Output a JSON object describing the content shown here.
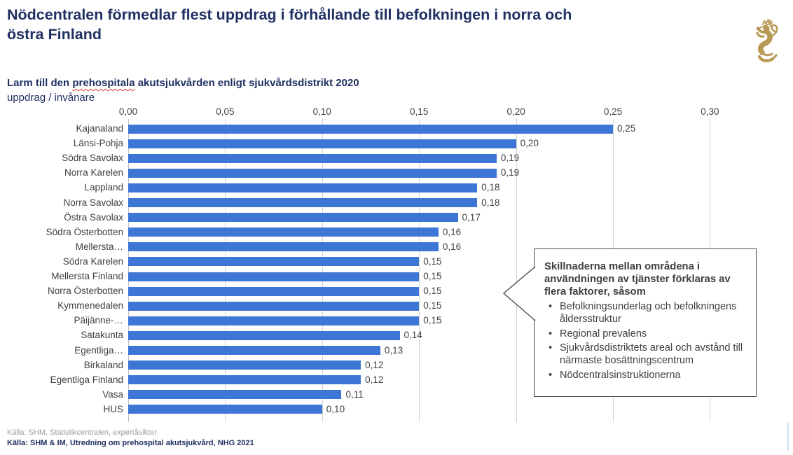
{
  "page": {
    "title_lines": [
      "Nödcentralen förmedlar flest uppdrag i förhållande till befolkningen i norra och",
      "östra Finland"
    ]
  },
  "logo": {
    "name": "finnish-lion-coat-of-arms",
    "color": "#b99a55"
  },
  "subtitle": {
    "prefix": "Larm till den ",
    "spellcheck_word": "prehospitala",
    "suffix": " akutsjukvården enligt sjukvårdsdistrikt 2020"
  },
  "unit_label": "uppdrag / invånare",
  "chart_data": {
    "type": "bar",
    "orientation": "horizontal",
    "title": "Larm till den prehospitala akutsjukvården enligt sjukvårdsdistrikt 2020",
    "xlabel": "uppdrag / invånare",
    "xlim": [
      0,
      0.3
    ],
    "x_tick_labels": [
      "0,00",
      "0,05",
      "0,10",
      "0,15",
      "0,20",
      "0,25",
      "0,30"
    ],
    "x_tick_values": [
      0.0,
      0.05,
      0.1,
      0.15,
      0.2,
      0.25,
      0.3
    ],
    "grid": true,
    "bar_color": "#3e76d6",
    "categories": [
      "Kajanaland",
      "Länsi-Pohja",
      "Södra Savolax",
      "Norra Karelen",
      "Lappland",
      "Norra Savolax",
      "Östra Savolax",
      "Södra Österbotten",
      "Mellersta…",
      "Södra Karelen",
      "Mellersta Finland",
      "Norra Österbotten",
      "Kymmenedalen",
      "Päijänne-…",
      "Satakunta",
      "Egentliga…",
      "Birkaland",
      "Egentliga Finland",
      "Vasa",
      "HUS"
    ],
    "values": [
      0.25,
      0.2,
      0.19,
      0.19,
      0.18,
      0.18,
      0.17,
      0.16,
      0.16,
      0.15,
      0.15,
      0.15,
      0.15,
      0.15,
      0.14,
      0.13,
      0.12,
      0.12,
      0.11,
      0.1
    ],
    "value_labels": [
      "0,25",
      "0,20",
      "0,19",
      "0,19",
      "0,18",
      "0,18",
      "0,17",
      "0,16",
      "0,16",
      "0,15",
      "0,15",
      "0,15",
      "0,15",
      "0,15",
      "0,14",
      "0,13",
      "0,12",
      "0,12",
      "0,11",
      "0,10"
    ]
  },
  "callout": {
    "heading": "Skillnaderna mellan områdena i användningen av tjänster förklaras av flera faktorer, såsom",
    "bullets": [
      "Befolkningsunderlag och befolkningens åldersstruktur",
      "Regional prevalens",
      "Sjukvårdsdistriktets areal och avstånd till närmaste bosättningscentrum",
      "Nödcentralsinstruktionerna"
    ]
  },
  "footer": {
    "line1": "Källa: SHM, Statistikcentralen, expertåsikter",
    "line2": "Källa: SHM & IM, Utredning om prehospital akutsjukvård, NHG 2021"
  }
}
